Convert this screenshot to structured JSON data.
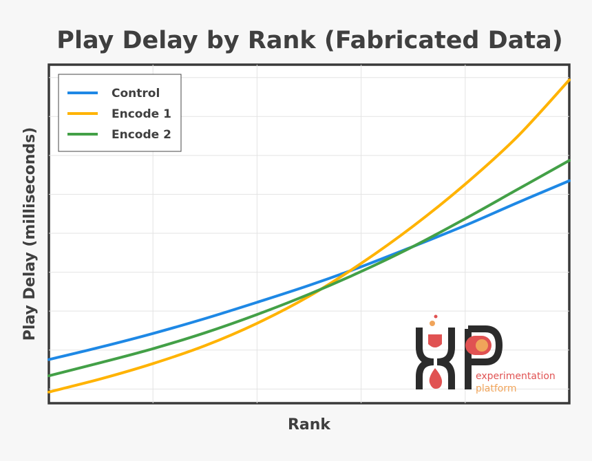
{
  "chart_data": {
    "type": "line",
    "title": "Play Delay by Rank (Fabricated Data)",
    "xlabel": "Rank",
    "ylabel": "Play Delay (milliseconds)",
    "xlim": [
      0,
      10
    ],
    "ylim": [
      0,
      10
    ],
    "x": [
      0,
      1,
      2,
      3,
      4,
      5,
      6,
      7,
      8,
      9,
      10
    ],
    "grid": true,
    "legend": "top-left",
    "series": [
      {
        "name": "Control",
        "color": "#1e88e5",
        "values": [
          1.29,
          1.66,
          2.06,
          2.5,
          2.98,
          3.48,
          4.03,
          4.63,
          5.25,
          5.92,
          6.57
        ]
      },
      {
        "name": "Encode 1",
        "color": "#ffb300",
        "values": [
          0.33,
          0.72,
          1.17,
          1.7,
          2.36,
          3.16,
          4.13,
          5.23,
          6.47,
          7.87,
          9.55
        ]
      },
      {
        "name": "Encode 2",
        "color": "#43a047",
        "values": [
          0.81,
          1.2,
          1.61,
          2.08,
          2.62,
          3.22,
          3.89,
          4.63,
          5.45,
          6.31,
          7.17
        ]
      }
    ]
  },
  "logo": {
    "line1": "experimentation",
    "line2": "platform",
    "line1_color": "#e05252",
    "line2_color": "#f0a45a",
    "mark_color": "#2b2b2b"
  }
}
